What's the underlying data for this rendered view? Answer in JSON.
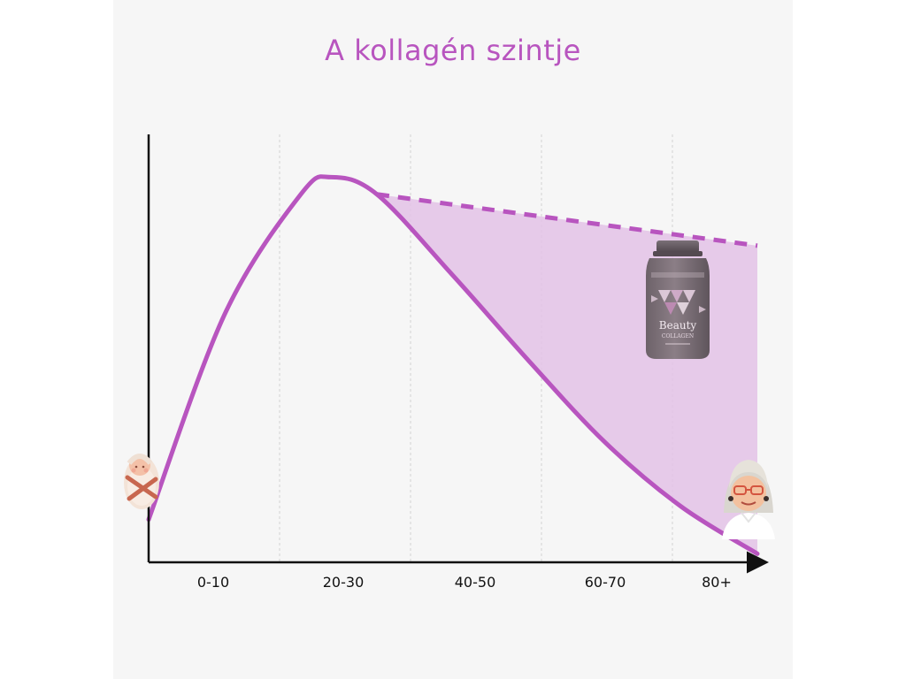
{
  "colors": {
    "accent": "#b855bf",
    "band_fill": "#e3c2e6",
    "background": "#f6f6f6",
    "axis": "#111111",
    "gridline": "#dddddd"
  },
  "chart_data": {
    "type": "line",
    "title": "A kollagén szintje",
    "xlabel": "",
    "ylabel": "",
    "categories": [
      "0-10",
      "20-30",
      "40-50",
      "60-70",
      "80+"
    ],
    "grid": "vertical dotted lines between categories",
    "series": [
      {
        "style": "solid",
        "x": [
          0,
          10,
          20,
          24,
          30,
          40,
          50,
          60,
          70,
          80
        ],
        "y": [
          10,
          58,
          86,
          90,
          86,
          67,
          47,
          28,
          13,
          2
        ]
      },
      {
        "style": "dashed",
        "x": [
          30,
          80
        ],
        "y": [
          86,
          74
        ]
      }
    ],
    "shaded_area": "between dashed line and solid line from 30 to 80",
    "decorations": {
      "start_icon": "baby-icon",
      "end_icon": "elderly-woman-icon",
      "product": "collagen-jar-icon",
      "product_text": [
        "Beauty",
        "COLLAGEN"
      ]
    }
  }
}
